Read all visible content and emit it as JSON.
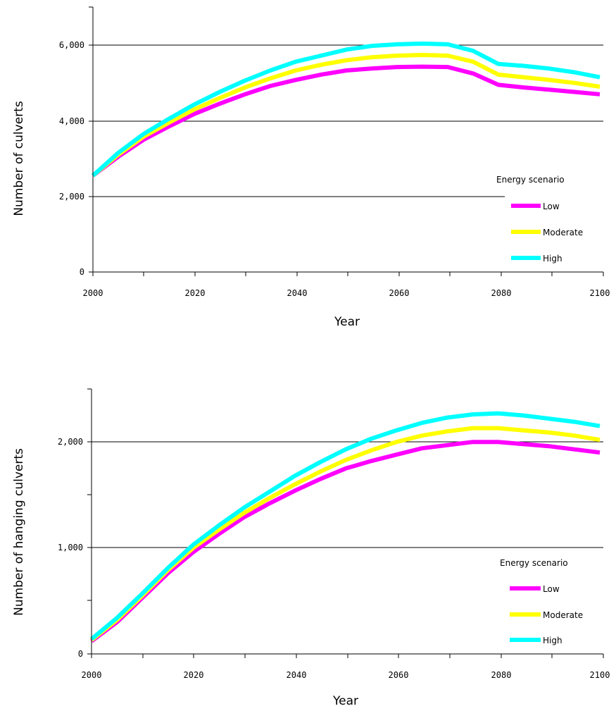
{
  "chart_data": [
    {
      "type": "line",
      "title": "",
      "xlabel": "Year",
      "ylabel": "Number of culverts",
      "xlim": [
        2000,
        2100
      ],
      "ylim": [
        0,
        6000
      ],
      "x_ticks": [
        "2000",
        "2020",
        "2040",
        "2060",
        "2080",
        "2100"
      ],
      "y_ticks": [
        "0",
        "2,000",
        "4,000",
        "6,000"
      ],
      "gridlines": [
        2000,
        4000,
        6000
      ],
      "legend": {
        "title": "Energy scenario",
        "position": "right"
      },
      "x": [
        2000,
        2005,
        2010,
        2015,
        2020,
        2025,
        2030,
        2035,
        2040,
        2045,
        2050,
        2055,
        2060,
        2065,
        2070,
        2075,
        2080,
        2085,
        2090,
        2095,
        2100
      ],
      "series": [
        {
          "name": "Low",
          "color": "#ff00ff",
          "values": [
            2550,
            3050,
            3500,
            3850,
            4180,
            4450,
            4700,
            4920,
            5080,
            5220,
            5330,
            5380,
            5420,
            5430,
            5420,
            5250,
            4950,
            4880,
            4820,
            4760,
            4700
          ]
        },
        {
          "name": "Moderate",
          "color": "#ffff00",
          "values": [
            2550,
            3100,
            3580,
            3950,
            4300,
            4600,
            4880,
            5120,
            5330,
            5480,
            5600,
            5680,
            5720,
            5740,
            5720,
            5560,
            5220,
            5150,
            5080,
            5000,
            4900
          ]
        },
        {
          "name": "High",
          "color": "#00ffff",
          "values": [
            2550,
            3150,
            3650,
            4050,
            4430,
            4760,
            5060,
            5330,
            5560,
            5720,
            5880,
            5980,
            6020,
            6040,
            6020,
            5850,
            5500,
            5450,
            5380,
            5280,
            5150
          ]
        }
      ]
    },
    {
      "type": "line",
      "title": "",
      "xlabel": "Year",
      "ylabel": "Number of hanging culverts",
      "xlim": [
        2000,
        2100
      ],
      "ylim": [
        0,
        2500
      ],
      "x_ticks": [
        "2000",
        "2020",
        "2040",
        "2060",
        "2080",
        "2100"
      ],
      "y_ticks": [
        "0",
        "1,000",
        "2,000"
      ],
      "gridlines": [
        1000,
        2000
      ],
      "legend": {
        "title": "Energy scenario",
        "position": "right"
      },
      "x": [
        2000,
        2005,
        2010,
        2015,
        2020,
        2025,
        2030,
        2035,
        2040,
        2045,
        2050,
        2055,
        2060,
        2065,
        2070,
        2075,
        2080,
        2085,
        2090,
        2095,
        2100
      ],
      "series": [
        {
          "name": "Low",
          "color": "#ff00ff",
          "values": [
            120,
            300,
            530,
            760,
            960,
            1130,
            1290,
            1420,
            1540,
            1650,
            1750,
            1820,
            1880,
            1940,
            1970,
            2000,
            2000,
            1980,
            1960,
            1930,
            1900
          ]
        },
        {
          "name": "Moderate",
          "color": "#ffff00",
          "values": [
            130,
            320,
            550,
            790,
            1000,
            1170,
            1330,
            1470,
            1600,
            1720,
            1830,
            1920,
            2000,
            2060,
            2100,
            2130,
            2130,
            2110,
            2090,
            2060,
            2020
          ]
        },
        {
          "name": "High",
          "color": "#00ffff",
          "values": [
            140,
            340,
            570,
            810,
            1030,
            1210,
            1380,
            1530,
            1680,
            1810,
            1930,
            2030,
            2110,
            2180,
            2230,
            2260,
            2270,
            2250,
            2220,
            2190,
            2150
          ]
        }
      ]
    }
  ]
}
